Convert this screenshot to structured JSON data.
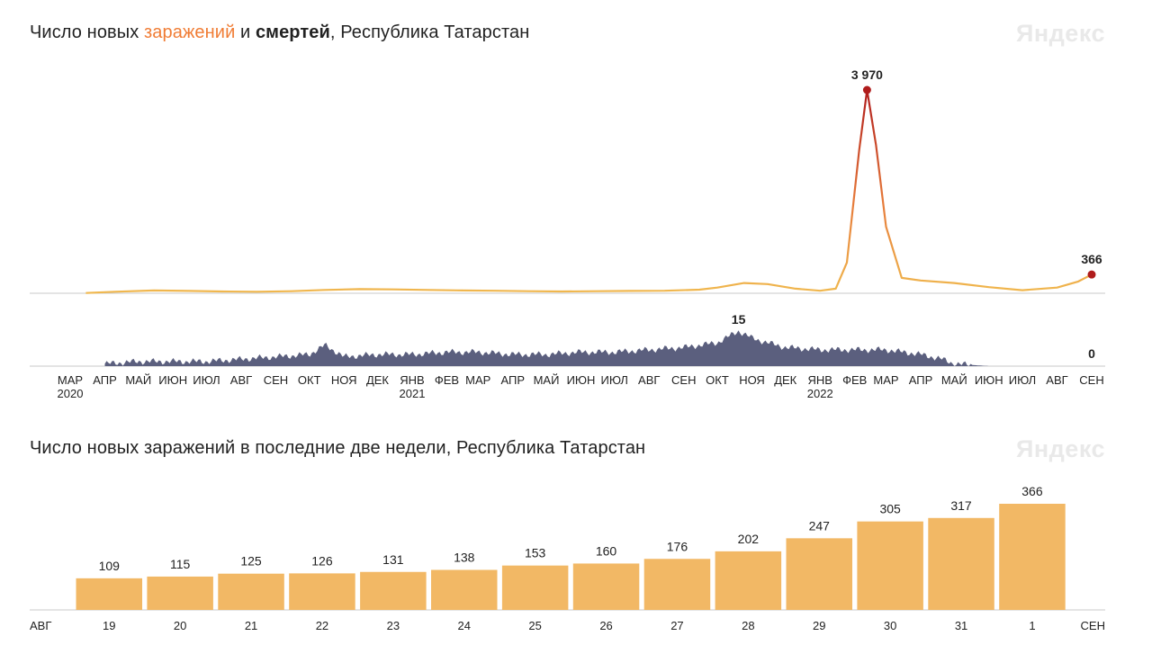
{
  "brand_text": "Яндекс",
  "chart1": {
    "title_part1": "Число новых ",
    "title_infections": "заражений",
    "title_part2": " и ",
    "title_deaths": "смертей",
    "title_part3": ", Республика Татарстан"
  },
  "chart2": {
    "title": "Число новых заражений в последние две недели, Республика Татарстан"
  },
  "colors": {
    "infections_line": "#f0b84e",
    "infections_peak": "#b01c1c",
    "deaths_area": "#5b5f7e",
    "bars": "#f2b865",
    "weekend": "#d9303a",
    "brand": "#e9e9e9"
  },
  "chart_data": [
    {
      "type": "line",
      "title": "Число новых заражений и смертей, Республика Татарстан",
      "series": [
        {
          "name": "заражений",
          "x": [
            "2020-03-15",
            "2020-04-10",
            "2020-05-15",
            "2020-06-15",
            "2020-07-15",
            "2020-08-15",
            "2020-09-15",
            "2020-10-15",
            "2020-11-15",
            "2020-12-15",
            "2021-01-15",
            "2021-02-15",
            "2021-03-15",
            "2021-04-15",
            "2021-05-15",
            "2021-06-15",
            "2021-07-15",
            "2021-08-15",
            "2021-09-15",
            "2021-10-01",
            "2021-10-25",
            "2021-11-15",
            "2021-12-10",
            "2022-01-01",
            "2022-01-15",
            "2022-01-25",
            "2022-02-05",
            "2022-02-12",
            "2022-02-20",
            "2022-03-01",
            "2022-03-15",
            "2022-04-01",
            "2022-05-01",
            "2022-06-01",
            "2022-07-01",
            "2022-08-01",
            "2022-08-20",
            "2022-09-01"
          ],
          "values": [
            5,
            30,
            55,
            45,
            35,
            30,
            40,
            65,
            80,
            75,
            65,
            55,
            50,
            40,
            35,
            40,
            45,
            50,
            70,
            110,
            200,
            180,
            90,
            50,
            90,
            600,
            2800,
            3970,
            2900,
            1300,
            300,
            250,
            200,
            120,
            60,
            110,
            230,
            366
          ]
        },
        {
          "name": "смертей",
          "x": [
            "2020-04-01",
            "2020-05-01",
            "2020-06-01",
            "2020-07-01",
            "2020-08-01",
            "2020-09-01",
            "2020-10-01",
            "2020-10-15",
            "2020-11-01",
            "2020-12-01",
            "2021-01-01",
            "2021-02-01",
            "2021-03-01",
            "2021-04-01",
            "2021-05-01",
            "2021-06-01",
            "2021-07-01",
            "2021-08-01",
            "2021-09-01",
            "2021-10-01",
            "2021-10-20",
            "2021-11-01",
            "2021-11-15",
            "2021-12-01",
            "2022-01-01",
            "2022-02-01",
            "2022-03-01",
            "2022-04-01",
            "2022-04-20",
            "2022-05-01",
            "2022-06-01",
            "2022-07-01",
            "2022-08-01",
            "2022-09-01"
          ],
          "values": [
            1,
            2,
            2,
            2,
            3,
            4,
            5,
            9,
            4,
            5,
            5,
            6,
            6,
            5,
            5,
            6,
            6,
            7,
            8,
            10,
            15,
            12,
            10,
            8,
            7,
            7,
            7,
            5,
            3,
            1,
            0,
            0,
            0,
            0
          ]
        }
      ],
      "annotations": {
        "peak_infections": "3 970",
        "last_infections": "366",
        "peak_deaths": "15",
        "last_deaths": "0"
      },
      "xticks": [
        {
          "label": "МАР",
          "year": "2020",
          "date": "2020-03-01"
        },
        {
          "label": "АПР",
          "date": "2020-04-01"
        },
        {
          "label": "МАЙ",
          "date": "2020-05-01"
        },
        {
          "label": "ИЮН",
          "date": "2020-06-01"
        },
        {
          "label": "ИЮЛ",
          "date": "2020-07-01"
        },
        {
          "label": "АВГ",
          "date": "2020-08-01"
        },
        {
          "label": "СЕН",
          "date": "2020-09-01"
        },
        {
          "label": "ОКТ",
          "date": "2020-10-01"
        },
        {
          "label": "НОЯ",
          "date": "2020-11-01"
        },
        {
          "label": "ДЕК",
          "date": "2020-12-01"
        },
        {
          "label": "ЯНВ",
          "year": "2021",
          "date": "2021-01-01"
        },
        {
          "label": "ФЕВ",
          "date": "2021-02-01"
        },
        {
          "label": "МАР",
          "date": "2021-03-01"
        },
        {
          "label": "АПР",
          "date": "2021-04-01"
        },
        {
          "label": "МАЙ",
          "date": "2021-05-01"
        },
        {
          "label": "ИЮН",
          "date": "2021-06-01"
        },
        {
          "label": "ИЮЛ",
          "date": "2021-07-01"
        },
        {
          "label": "АВГ",
          "date": "2021-08-01"
        },
        {
          "label": "СЕН",
          "date": "2021-09-01"
        },
        {
          "label": "ОКТ",
          "date": "2021-10-01"
        },
        {
          "label": "НОЯ",
          "date": "2021-11-01"
        },
        {
          "label": "ДЕК",
          "date": "2021-12-01"
        },
        {
          "label": "ЯНВ",
          "year": "2022",
          "date": "2022-01-01"
        },
        {
          "label": "ФЕВ",
          "date": "2022-02-01"
        },
        {
          "label": "МАР",
          "date": "2022-03-01"
        },
        {
          "label": "АПР",
          "date": "2022-04-01"
        },
        {
          "label": "МАЙ",
          "date": "2022-05-01"
        },
        {
          "label": "ИЮН",
          "date": "2022-06-01"
        },
        {
          "label": "ИЮЛ",
          "date": "2022-07-01"
        },
        {
          "label": "АВГ",
          "date": "2022-08-01"
        },
        {
          "label": "СЕН",
          "date": "2022-09-01"
        }
      ],
      "x_range": [
        "2020-03-01",
        "2022-09-01"
      ],
      "ylim_infections": [
        0,
        3970
      ],
      "ylim_deaths": [
        0,
        15
      ]
    },
    {
      "type": "bar",
      "title": "Число новых заражений в последние две недели, Республика Татарстан",
      "categories": [
        "19",
        "20",
        "21",
        "22",
        "23",
        "24",
        "25",
        "26",
        "27",
        "28",
        "29",
        "30",
        "31",
        "1"
      ],
      "weekend": [
        false,
        true,
        true,
        false,
        false,
        false,
        false,
        false,
        true,
        true,
        false,
        false,
        false,
        false
      ],
      "values": [
        109,
        115,
        125,
        126,
        131,
        138,
        153,
        160,
        176,
        202,
        247,
        305,
        317,
        366
      ],
      "month_left": "АВГ",
      "month_right": "СЕН",
      "ylim": [
        0,
        366
      ]
    }
  ]
}
